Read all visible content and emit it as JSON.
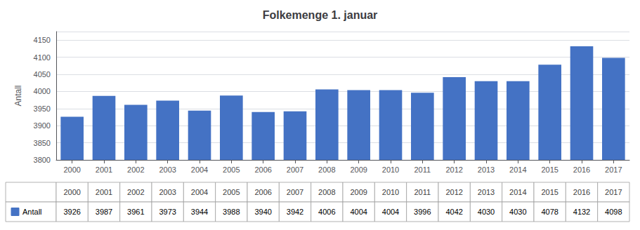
{
  "chart_data": {
    "type": "bar",
    "title": "Folkemenge 1. januar",
    "ylabel": "Antall",
    "categories": [
      "2000",
      "2001",
      "2002",
      "2003",
      "2004",
      "2005",
      "2006",
      "2007",
      "2008",
      "2009",
      "2010",
      "2011",
      "2012",
      "2013",
      "2014",
      "2015",
      "2016",
      "2017"
    ],
    "series": [
      {
        "name": "Antall",
        "color": "#4472C4",
        "values": [
          3926,
          3987,
          3961,
          3973,
          3944,
          3988,
          3940,
          3942,
          4006,
          4004,
          4004,
          3996,
          4042,
          4030,
          4030,
          4078,
          4132,
          4098
        ]
      }
    ],
    "ylim": [
      3800,
      4175
    ],
    "yticks": [
      3800,
      3850,
      3900,
      3950,
      4000,
      4050,
      4100,
      4150
    ],
    "grid": true
  }
}
